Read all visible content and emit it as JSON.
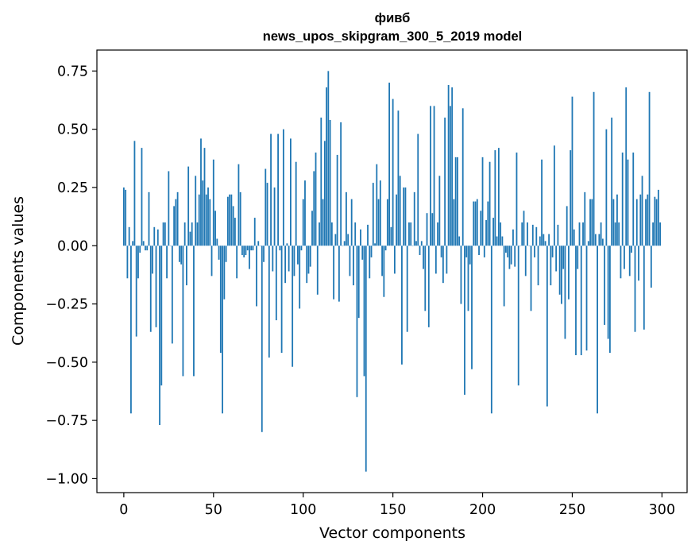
{
  "chart_data": {
    "type": "bar",
    "title_lines": [
      "фивб",
      "news_upos_skipgram_300_5_2019 model"
    ],
    "xlabel": "Vector components",
    "ylabel": "Components values",
    "xlim": [
      -15,
      314
    ],
    "ylim": [
      -1.06,
      0.84
    ],
    "xticks": [
      0,
      50,
      100,
      150,
      200,
      250,
      300
    ],
    "yticks": [
      -1.0,
      -0.75,
      -0.5,
      -0.25,
      0.0,
      0.25,
      0.5,
      0.75
    ],
    "ytick_labels": [
      "−1.00",
      "−0.75",
      "−0.50",
      "−0.25",
      "0.00",
      "0.25",
      "0.50",
      "0.75"
    ],
    "bar_color": "#1f77b4",
    "values": [
      0.25,
      0.24,
      -0.14,
      0.08,
      -0.72,
      0.02,
      0.45,
      -0.39,
      -0.14,
      -0.03,
      0.42,
      0.02,
      -0.02,
      -0.02,
      0.23,
      -0.37,
      -0.12,
      0.08,
      -0.35,
      0.07,
      -0.77,
      -0.6,
      0.1,
      0.1,
      -0.14,
      0.32,
      0.0,
      -0.42,
      0.17,
      0.2,
      0.23,
      -0.07,
      -0.08,
      -0.56,
      0.1,
      -0.17,
      0.34,
      0.06,
      0.1,
      -0.56,
      0.3,
      0.1,
      0.22,
      0.46,
      0.28,
      0.42,
      0.22,
      0.25,
      0.2,
      -0.13,
      0.37,
      0.15,
      0.03,
      -0.06,
      -0.46,
      -0.72,
      -0.23,
      -0.07,
      0.21,
      0.22,
      0.22,
      0.17,
      0.12,
      -0.14,
      0.35,
      0.23,
      -0.04,
      -0.05,
      -0.04,
      -0.02,
      -0.1,
      -0.02,
      -0.02,
      0.12,
      -0.26,
      0.02,
      0.0,
      -0.8,
      -0.07,
      0.33,
      0.27,
      -0.48,
      0.48,
      -0.11,
      0.25,
      -0.32,
      0.48,
      -0.02,
      -0.46,
      0.5,
      -0.16,
      0.01,
      -0.11,
      0.46,
      -0.52,
      -0.13,
      0.36,
      -0.08,
      -0.27,
      -0.02,
      0.2,
      0.28,
      -0.16,
      -0.12,
      -0.09,
      0.15,
      0.32,
      0.4,
      -0.21,
      0.1,
      0.55,
      0.2,
      0.45,
      0.68,
      0.75,
      0.54,
      0.1,
      -0.23,
      0.05,
      0.39,
      -0.24,
      0.53,
      0.0,
      0.02,
      0.23,
      0.05,
      -0.13,
      0.2,
      -0.17,
      0.1,
      -0.65,
      -0.31,
      0.07,
      -0.06,
      -0.56,
      -0.97,
      0.09,
      -0.14,
      -0.05,
      0.27,
      0.01,
      0.35,
      0.2,
      0.28,
      -0.13,
      -0.22,
      -0.02,
      0.2,
      0.7,
      0.08,
      0.63,
      -0.12,
      0.22,
      0.58,
      0.3,
      -0.51,
      0.25,
      0.25,
      -0.37,
      0.1,
      0.1,
      0.0,
      0.23,
      0.02,
      0.48,
      -0.04,
      0.02,
      -0.1,
      -0.28,
      0.14,
      -0.35,
      0.6,
      0.14,
      0.6,
      -0.12,
      0.1,
      0.3,
      -0.05,
      -0.16,
      0.55,
      -0.12,
      0.69,
      0.6,
      0.68,
      0.2,
      0.38,
      0.38,
      0.04,
      -0.25,
      0.59,
      -0.64,
      -0.05,
      -0.28,
      -0.08,
      -0.53,
      0.19,
      0.19,
      0.2,
      -0.04,
      0.15,
      0.38,
      -0.05,
      0.11,
      0.19,
      0.36,
      -0.72,
      0.12,
      0.41,
      0.04,
      0.42,
      0.1,
      0.04,
      -0.26,
      -0.03,
      -0.05,
      -0.1,
      -0.08,
      0.07,
      -0.09,
      0.4,
      -0.6,
      0.0,
      0.1,
      0.15,
      -0.13,
      0.1,
      0.0,
      -0.28,
      0.09,
      -0.05,
      0.08,
      -0.17,
      0.04,
      0.37,
      0.05,
      0.02,
      -0.69,
      0.05,
      -0.17,
      -0.05,
      0.43,
      -0.11,
      0.09,
      -0.21,
      -0.25,
      -0.1,
      -0.4,
      0.17,
      -0.23,
      0.41,
      0.64,
      0.07,
      -0.47,
      -0.1,
      0.1,
      -0.47,
      0.1,
      0.23,
      -0.45,
      0.02,
      0.2,
      0.2,
      0.66,
      0.05,
      -0.72,
      0.05,
      0.1,
      0.03,
      -0.34,
      0.5,
      -0.4,
      -0.46,
      0.55,
      0.2,
      0.1,
      0.22,
      0.1,
      -0.14,
      0.4,
      -0.1,
      0.68,
      0.37,
      -0.13,
      -0.03,
      0.4,
      -0.37,
      0.2,
      -0.15,
      0.22,
      0.3,
      -0.36,
      0.2,
      0.22,
      0.66,
      -0.18,
      0.1,
      0.21,
      0.2,
      0.24,
      0.1
    ]
  }
}
